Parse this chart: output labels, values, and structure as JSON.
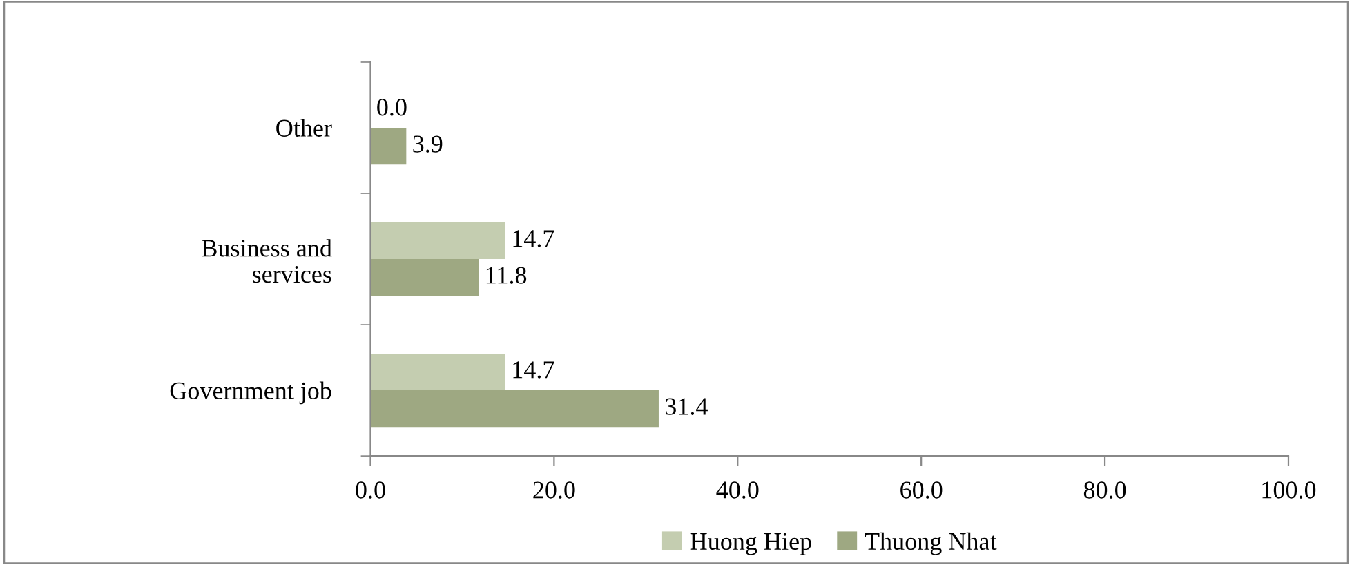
{
  "chart_data": {
    "type": "bar",
    "orientation": "horizontal",
    "categories": [
      "Other",
      "Business and\nservices",
      "Government job"
    ],
    "series": [
      {
        "name": "Huong Hiep",
        "color": "#c4cdb0",
        "values": [
          0.0,
          14.7,
          14.7
        ],
        "value_labels": [
          "0.0",
          "14.7",
          "14.7"
        ]
      },
      {
        "name": "Thuong Nhat",
        "color": "#9ea882",
        "values": [
          3.9,
          11.8,
          31.4
        ],
        "value_labels": [
          "3.9",
          "11.8",
          "31.4"
        ]
      }
    ],
    "xlim": [
      0,
      100
    ],
    "xticks": [
      {
        "value": 0,
        "label": "0.0"
      },
      {
        "value": 20,
        "label": "20.0"
      },
      {
        "value": 40,
        "label": "40.0"
      },
      {
        "value": 60,
        "label": "60.0"
      },
      {
        "value": 80,
        "label": "80.0"
      },
      {
        "value": 100,
        "label": "100.0"
      }
    ],
    "grid": false,
    "legend": "bottom"
  }
}
